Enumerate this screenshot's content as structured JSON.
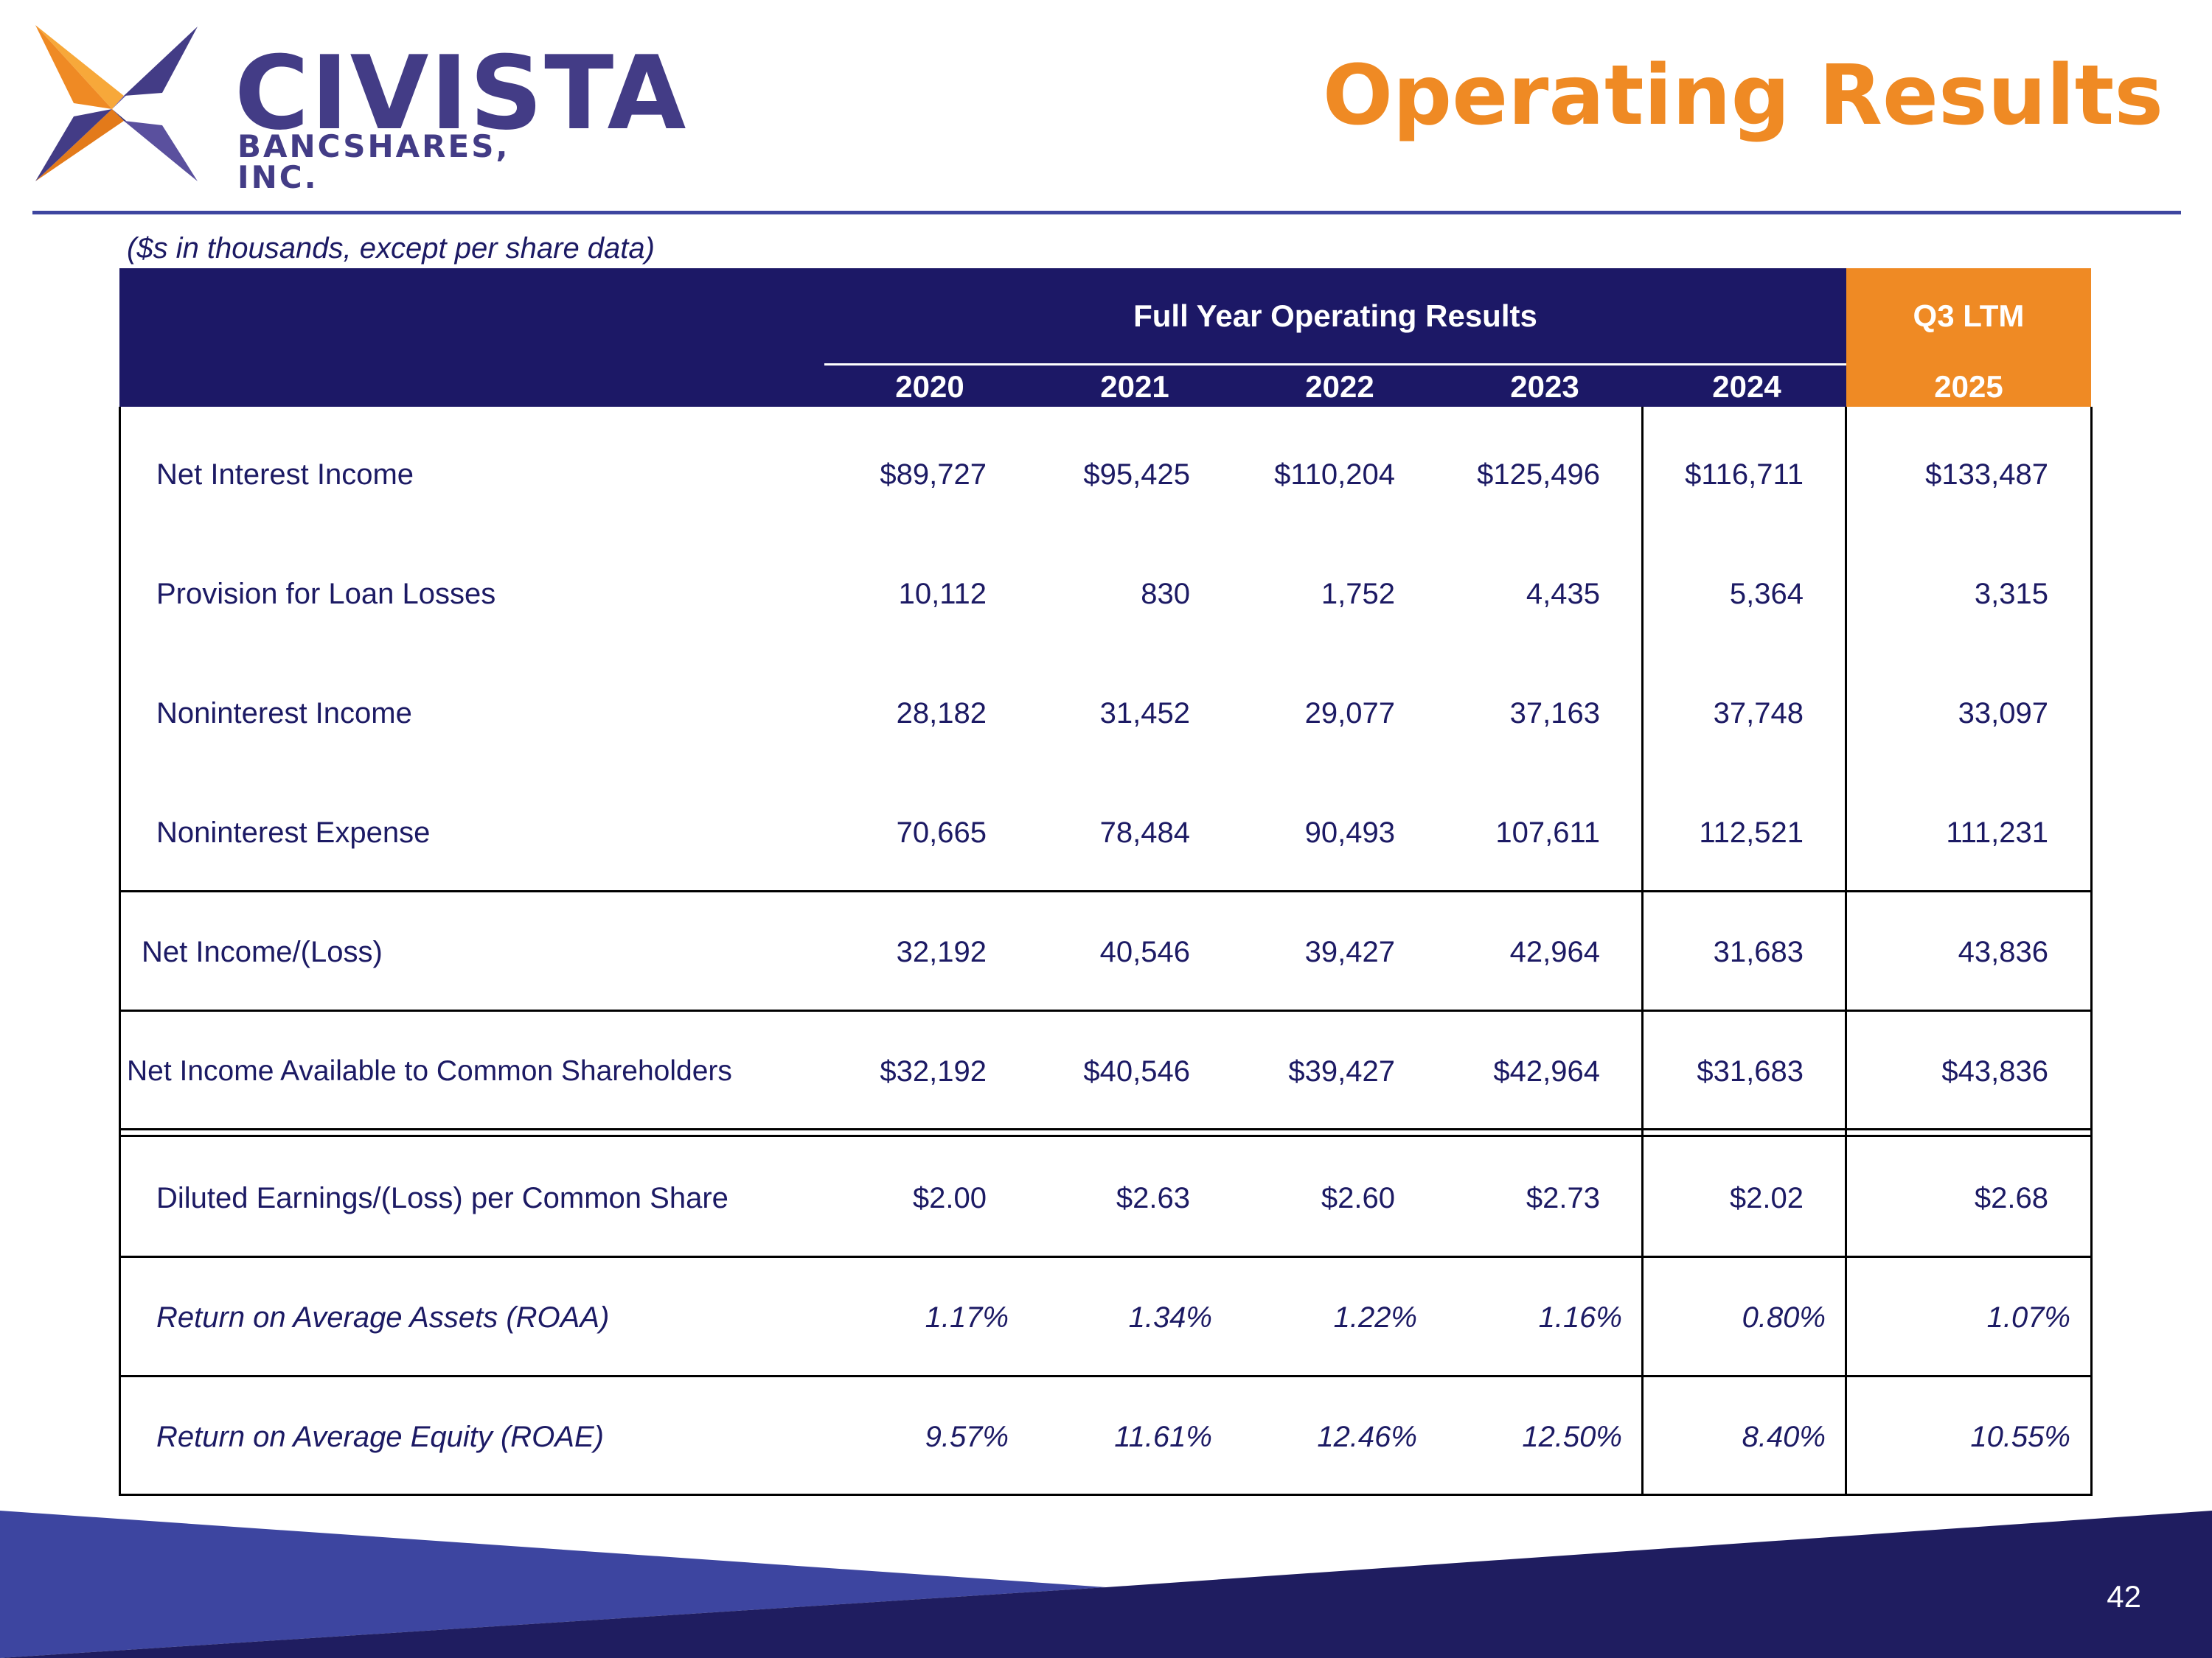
{
  "logo": {
    "name": "CIVISTA",
    "subtitle": "BANCSHARES, INC."
  },
  "title": "Operating Results",
  "subtitle": "($s in thousands, except per share data)",
  "header": {
    "group_label": "Full Year Operating Results",
    "ltm_label": "Q3 LTM",
    "years": [
      "2020",
      "2021",
      "2022",
      "2023",
      "2024"
    ],
    "ltm_year": "2025"
  },
  "rows": [
    {
      "label": "Net Interest Income",
      "values": [
        "$89,727",
        "$95,425",
        "$110,204",
        "$125,496",
        "$116,711",
        "$133,487"
      ]
    },
    {
      "label": "Provision for Loan Losses",
      "values": [
        "10,112",
        "830",
        "1,752",
        "4,435",
        "5,364",
        "3,315"
      ]
    },
    {
      "label": "Noninterest Income",
      "values": [
        "28,182",
        "31,452",
        "29,077",
        "37,163",
        "37,748",
        "33,097"
      ]
    },
    {
      "label": "Noninterest Expense",
      "values": [
        "70,665",
        "78,484",
        "90,493",
        "107,611",
        "112,521",
        "111,231"
      ]
    },
    {
      "label": "Net Income/(Loss)",
      "values": [
        "32,192",
        "40,546",
        "39,427",
        "42,964",
        "31,683",
        "43,836"
      ]
    },
    {
      "label": "Net Income Available to Common Shareholders",
      "values": [
        "$32,192",
        "$40,546",
        "$39,427",
        "$42,964",
        "$31,683",
        "$43,836"
      ]
    },
    {
      "label": "Diluted Earnings/(Loss) per Common Share",
      "values": [
        "$2.00",
        "$2.63",
        "$2.60",
        "$2.73",
        "$2.02",
        "$2.68"
      ]
    },
    {
      "label": "Return on Average Assets (ROAA)",
      "values": [
        "1.17%",
        "1.34%",
        "1.22%",
        "1.16%",
        "0.80%",
        "1.07%"
      ]
    },
    {
      "label": "Return on Average Equity (ROAE)",
      "values": [
        "9.57%",
        "11.61%",
        "12.46%",
        "12.50%",
        "8.40%",
        "10.55%"
      ]
    }
  ],
  "page_number": "42",
  "colors": {
    "navy": "#1c1866",
    "orange": "#ef8a24",
    "text": "#1c1a64",
    "rule": "#3e46a0"
  }
}
